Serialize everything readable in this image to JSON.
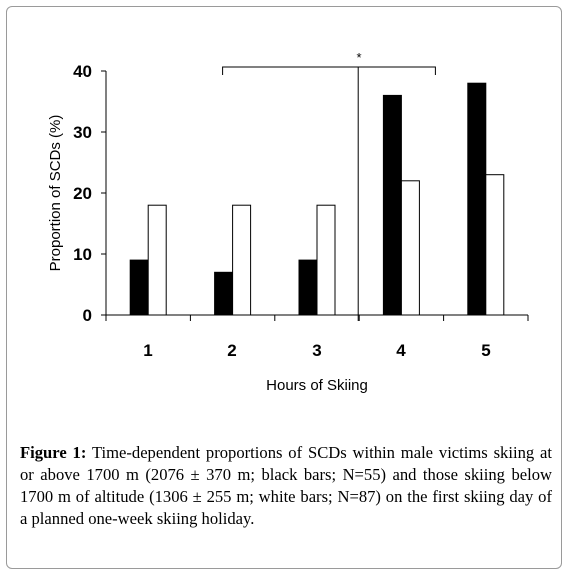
{
  "chart_data": {
    "type": "bar",
    "categories": [
      "1",
      "2",
      "3",
      "4",
      "5"
    ],
    "series": [
      {
        "color": "#000000",
        "values": [
          9,
          7,
          9,
          36,
          38
        ]
      },
      {
        "color": "#ffffff",
        "values": [
          18,
          18,
          18,
          22,
          23
        ]
      }
    ],
    "xlabel": "Hours of Skiing",
    "ylabel": "Proportion of SCDs (%)",
    "ylim": [
      0,
      40
    ],
    "yticks": [
      "0",
      "10",
      "20",
      "30",
      "40"
    ],
    "grid": false,
    "annotation": {
      "text": "*",
      "from_category": "2",
      "to_category": "4"
    }
  },
  "caption": {
    "label": "Figure 1:",
    "text": "Time-dependent proportions of SCDs within male victims skiing at or above 1700 m (2076 ± 370 m; black bars; N=55) and those skiing below 1700 m of altitude (1306 ± 255 m; white bars; N=87) on the first skiing day of a planned one-week skiing holiday."
  }
}
